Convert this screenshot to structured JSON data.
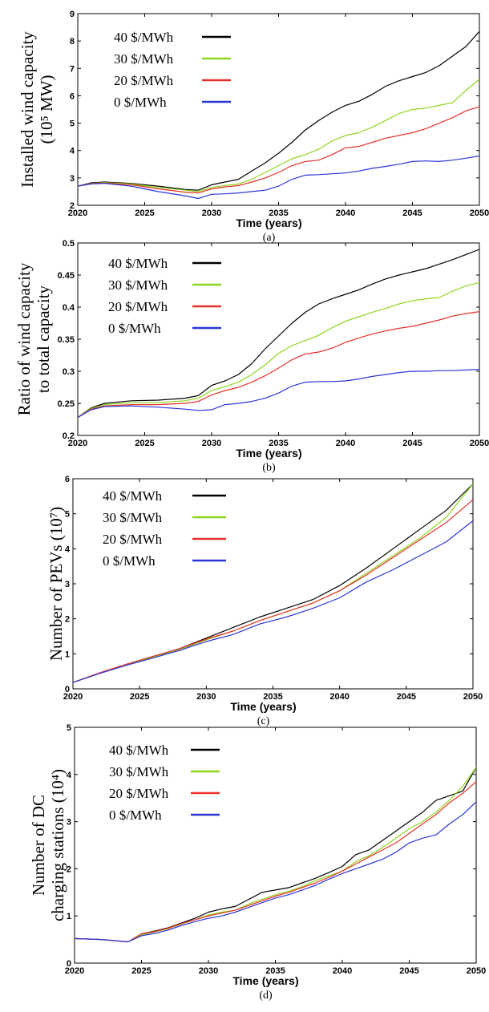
{
  "chart_data": [
    {
      "type": "line",
      "panel": "(a)",
      "caption": "(a)",
      "xlabel": "Time (years)",
      "ylabel_lines": [
        "Installed wind capacity",
        "(10⁵ MW)"
      ],
      "xlim": [
        2020,
        2050
      ],
      "ylim": [
        2,
        9
      ],
      "xticks": [
        2020,
        2025,
        2030,
        2035,
        2040,
        2045,
        2050
      ],
      "yticks": [
        2,
        3,
        4,
        5,
        6,
        7,
        8,
        9
      ],
      "ytick_labels": [
        "2",
        "3",
        "4",
        "5",
        "6",
        "7",
        "8",
        "9"
      ],
      "legend_position": "top-left",
      "series": [
        {
          "name": "40 $/MWh",
          "color": "#000000",
          "x": [
            2020,
            2021,
            2022,
            2024,
            2026,
            2028,
            2029,
            2030,
            2031,
            2032,
            2033,
            2034,
            2035,
            2036,
            2037,
            2038,
            2039,
            2040,
            2041,
            2042,
            2043,
            2044,
            2045,
            2046,
            2047,
            2048,
            2049,
            2050
          ],
          "y": [
            2.7,
            2.82,
            2.85,
            2.8,
            2.7,
            2.58,
            2.55,
            2.75,
            2.85,
            2.95,
            3.25,
            3.55,
            3.9,
            4.3,
            4.75,
            5.1,
            5.4,
            5.65,
            5.8,
            6.05,
            6.35,
            6.55,
            6.7,
            6.85,
            7.1,
            7.45,
            7.8,
            8.35
          ]
        },
        {
          "name": "30 $/MWh",
          "color": "#8ed61c",
          "x": [
            2020,
            2021,
            2022,
            2024,
            2026,
            2028,
            2029,
            2030,
            2031,
            2032,
            2033,
            2034,
            2035,
            2036,
            2037,
            2038,
            2039,
            2040,
            2041,
            2042,
            2043,
            2044,
            2045,
            2046,
            2047,
            2048,
            2049,
            2050
          ],
          "y": [
            2.7,
            2.8,
            2.83,
            2.78,
            2.65,
            2.55,
            2.5,
            2.65,
            2.72,
            2.78,
            2.95,
            3.2,
            3.45,
            3.7,
            3.85,
            4.05,
            4.35,
            4.55,
            4.65,
            4.85,
            5.1,
            5.35,
            5.5,
            5.55,
            5.65,
            5.75,
            6.2,
            6.6
          ]
        },
        {
          "name": "20 $/MWh",
          "color": "#e8312a",
          "x": [
            2020,
            2021,
            2022,
            2024,
            2026,
            2028,
            2029,
            2030,
            2031,
            2032,
            2033,
            2034,
            2035,
            2036,
            2037,
            2038,
            2039,
            2040,
            2041,
            2042,
            2043,
            2044,
            2045,
            2046,
            2047,
            2048,
            2049,
            2050
          ],
          "y": [
            2.7,
            2.79,
            2.81,
            2.75,
            2.6,
            2.48,
            2.45,
            2.6,
            2.67,
            2.72,
            2.85,
            3.0,
            3.2,
            3.45,
            3.6,
            3.65,
            3.85,
            4.1,
            4.15,
            4.3,
            4.45,
            4.55,
            4.65,
            4.8,
            5.0,
            5.2,
            5.45,
            5.6
          ]
        },
        {
          "name": "0 $/MWh",
          "color": "#2a36d8",
          "x": [
            2020,
            2021,
            2022,
            2024,
            2026,
            2028,
            2029,
            2030,
            2031,
            2032,
            2033,
            2034,
            2035,
            2036,
            2037,
            2038,
            2039,
            2040,
            2041,
            2042,
            2043,
            2044,
            2045,
            2046,
            2047,
            2048,
            2049,
            2050
          ],
          "y": [
            2.7,
            2.78,
            2.8,
            2.7,
            2.5,
            2.35,
            2.25,
            2.4,
            2.42,
            2.45,
            2.5,
            2.55,
            2.7,
            2.95,
            3.1,
            3.12,
            3.15,
            3.18,
            3.25,
            3.35,
            3.42,
            3.5,
            3.6,
            3.62,
            3.6,
            3.65,
            3.72,
            3.8
          ]
        }
      ]
    },
    {
      "type": "line",
      "panel": "(b)",
      "caption": "(b)",
      "xlabel": "Time (years)",
      "ylabel_lines": [
        "Ratio of wind capacity",
        "to total capacity"
      ],
      "xlim": [
        2020,
        2050
      ],
      "ylim": [
        0.2,
        0.5
      ],
      "xticks": [
        2020,
        2025,
        2030,
        2035,
        2040,
        2045,
        2050
      ],
      "yticks": [
        0.2,
        0.25,
        0.3,
        0.35,
        0.4,
        0.45,
        0.5
      ],
      "ytick_labels": [
        "0.2",
        "0.25",
        "0.3",
        "0.35",
        "0.4",
        "0.45",
        "0.5"
      ],
      "legend_position": "top-left",
      "series": [
        {
          "name": "40 $/MWh",
          "color": "#000000",
          "x": [
            2020,
            2021,
            2022,
            2024,
            2026,
            2028,
            2029,
            2030,
            2031,
            2032,
            2033,
            2034,
            2035,
            2036,
            2037,
            2038,
            2039,
            2040,
            2041,
            2042,
            2043,
            2044,
            2045,
            2046,
            2047,
            2048,
            2049,
            2050
          ],
          "y": [
            0.228,
            0.243,
            0.25,
            0.254,
            0.255,
            0.258,
            0.262,
            0.278,
            0.285,
            0.295,
            0.312,
            0.335,
            0.355,
            0.375,
            0.392,
            0.405,
            0.413,
            0.42,
            0.427,
            0.436,
            0.444,
            0.45,
            0.455,
            0.46,
            0.467,
            0.474,
            0.482,
            0.49
          ]
        },
        {
          "name": "30 $/MWh",
          "color": "#8ed61c",
          "x": [
            2020,
            2021,
            2022,
            2024,
            2026,
            2028,
            2029,
            2030,
            2031,
            2032,
            2033,
            2034,
            2035,
            2036,
            2037,
            2038,
            2039,
            2040,
            2041,
            2042,
            2043,
            2044,
            2045,
            2046,
            2047,
            2048,
            2049,
            2050
          ],
          "y": [
            0.228,
            0.242,
            0.248,
            0.251,
            0.251,
            0.254,
            0.258,
            0.27,
            0.276,
            0.283,
            0.295,
            0.31,
            0.328,
            0.34,
            0.348,
            0.356,
            0.368,
            0.378,
            0.385,
            0.392,
            0.398,
            0.405,
            0.41,
            0.413,
            0.415,
            0.425,
            0.433,
            0.438
          ]
        },
        {
          "name": "20 $/MWh",
          "color": "#e8312a",
          "x": [
            2020,
            2021,
            2022,
            2024,
            2026,
            2028,
            2029,
            2030,
            2031,
            2032,
            2033,
            2034,
            2035,
            2036,
            2037,
            2038,
            2039,
            2040,
            2041,
            2042,
            2043,
            2044,
            2045,
            2046,
            2047,
            2048,
            2049,
            2050
          ],
          "y": [
            0.228,
            0.241,
            0.246,
            0.248,
            0.248,
            0.25,
            0.253,
            0.263,
            0.27,
            0.275,
            0.283,
            0.293,
            0.305,
            0.318,
            0.327,
            0.33,
            0.336,
            0.345,
            0.352,
            0.358,
            0.363,
            0.367,
            0.37,
            0.375,
            0.38,
            0.386,
            0.39,
            0.393
          ]
        },
        {
          "name": "0 $/MWh",
          "color": "#2a36d8",
          "x": [
            2020,
            2021,
            2022,
            2024,
            2026,
            2028,
            2029,
            2030,
            2031,
            2032,
            2033,
            2034,
            2035,
            2036,
            2037,
            2038,
            2039,
            2040,
            2041,
            2042,
            2043,
            2044,
            2045,
            2046,
            2047,
            2048,
            2049,
            2050
          ],
          "y": [
            0.228,
            0.24,
            0.245,
            0.246,
            0.244,
            0.241,
            0.239,
            0.24,
            0.248,
            0.25,
            0.253,
            0.258,
            0.266,
            0.277,
            0.283,
            0.284,
            0.284,
            0.285,
            0.288,
            0.292,
            0.295,
            0.298,
            0.3,
            0.3,
            0.301,
            0.301,
            0.302,
            0.303
          ]
        }
      ]
    },
    {
      "type": "line",
      "panel": "(c)",
      "caption": "(c)",
      "xlabel": "Time (years)",
      "ylabel_lines": [
        "Number of PEVs (10⁷)"
      ],
      "xlim": [
        2020,
        2050
      ],
      "ylim": [
        0,
        6
      ],
      "xticks": [
        2020,
        2025,
        2030,
        2035,
        2040,
        2045,
        2050
      ],
      "yticks": [
        0,
        1,
        2,
        3,
        4,
        5,
        6
      ],
      "ytick_labels": [
        "0",
        "1",
        "2",
        "3",
        "4",
        "5",
        "6"
      ],
      "legend_position": "top-left",
      "series": [
        {
          "name": "40 $/MWh",
          "color": "#000000",
          "x": [
            2020,
            2022,
            2024,
            2026,
            2028,
            2030,
            2032,
            2034,
            2036,
            2038,
            2040,
            2042,
            2044,
            2046,
            2048,
            2050
          ],
          "y": [
            0.18,
            0.45,
            0.7,
            0.92,
            1.15,
            1.45,
            1.75,
            2.05,
            2.3,
            2.55,
            2.95,
            3.45,
            4.0,
            4.55,
            5.1,
            5.85
          ]
        },
        {
          "name": "30 $/MWh",
          "color": "#8ed61c",
          "x": [
            2020,
            2022,
            2024,
            2026,
            2028,
            2030,
            2032,
            2034,
            2036,
            2038,
            2040,
            2042,
            2044,
            2046,
            2048,
            2050
          ],
          "y": [
            0.18,
            0.45,
            0.68,
            0.9,
            1.12,
            1.4,
            1.65,
            1.95,
            2.2,
            2.45,
            2.8,
            3.3,
            3.8,
            4.3,
            4.9,
            5.85
          ]
        },
        {
          "name": "20 $/MWh",
          "color": "#e8312a",
          "x": [
            2020,
            2022,
            2024,
            2026,
            2028,
            2030,
            2032,
            2034,
            2036,
            2038,
            2040,
            2042,
            2044,
            2046,
            2048,
            2050
          ],
          "y": [
            0.18,
            0.46,
            0.7,
            0.93,
            1.15,
            1.42,
            1.65,
            1.95,
            2.2,
            2.45,
            2.8,
            3.25,
            3.75,
            4.25,
            4.75,
            5.4
          ]
        },
        {
          "name": "0 $/MWh",
          "color": "#2a36d8",
          "x": [
            2020,
            2022,
            2024,
            2026,
            2028,
            2030,
            2032,
            2034,
            2036,
            2038,
            2040,
            2042,
            2044,
            2046,
            2048,
            2050
          ],
          "y": [
            0.18,
            0.44,
            0.67,
            0.88,
            1.1,
            1.35,
            1.55,
            1.85,
            2.05,
            2.3,
            2.6,
            3.05,
            3.4,
            3.8,
            4.2,
            4.8
          ]
        }
      ]
    },
    {
      "type": "line",
      "panel": "(d)",
      "caption": "(d)",
      "xlabel": "Time (years)",
      "ylabel_lines": [
        "Number of DC",
        "charging stations (10⁴)"
      ],
      "xlim": [
        2020,
        2050
      ],
      "ylim": [
        0,
        5
      ],
      "xticks": [
        2020,
        2025,
        2030,
        2035,
        2040,
        2045,
        2050
      ],
      "yticks": [
        0,
        1,
        2,
        3,
        4,
        5
      ],
      "ytick_labels": [
        "0",
        "1",
        "2",
        "3",
        "4",
        "5"
      ],
      "legend_position": "top-left",
      "series": [
        {
          "name": "40 $/MWh",
          "color": "#000000",
          "x": [
            2020,
            2022,
            2024,
            2025,
            2026,
            2027,
            2028,
            2029,
            2030,
            2031,
            2032,
            2033,
            2034,
            2035,
            2036,
            2037,
            2038,
            2039,
            2040,
            2041,
            2042,
            2043,
            2044,
            2045,
            2046,
            2047,
            2048,
            2049,
            2050
          ],
          "y": [
            0.52,
            0.5,
            0.45,
            0.62,
            0.68,
            0.75,
            0.85,
            0.95,
            1.08,
            1.15,
            1.2,
            1.35,
            1.5,
            1.55,
            1.6,
            1.7,
            1.8,
            1.92,
            2.05,
            2.3,
            2.4,
            2.6,
            2.8,
            3.0,
            3.2,
            3.45,
            3.55,
            3.65,
            4.15
          ]
        },
        {
          "name": "30 $/MWh",
          "color": "#8ed61c",
          "x": [
            2020,
            2022,
            2024,
            2025,
            2026,
            2027,
            2028,
            2029,
            2030,
            2031,
            2032,
            2033,
            2034,
            2035,
            2036,
            2037,
            2038,
            2039,
            2040,
            2041,
            2042,
            2043,
            2044,
            2045,
            2046,
            2047,
            2048,
            2049,
            2050
          ],
          "y": [
            0.52,
            0.5,
            0.45,
            0.6,
            0.66,
            0.73,
            0.83,
            0.92,
            1.02,
            1.08,
            1.12,
            1.25,
            1.35,
            1.45,
            1.52,
            1.62,
            1.75,
            1.85,
            1.95,
            2.15,
            2.28,
            2.45,
            2.65,
            2.85,
            3.0,
            3.2,
            3.45,
            3.75,
            4.15
          ]
        },
        {
          "name": "20 $/MWh",
          "color": "#e8312a",
          "x": [
            2020,
            2022,
            2024,
            2025,
            2026,
            2027,
            2028,
            2029,
            2030,
            2031,
            2032,
            2033,
            2034,
            2035,
            2036,
            2037,
            2038,
            2039,
            2040,
            2041,
            2042,
            2043,
            2044,
            2045,
            2046,
            2047,
            2048,
            2049,
            2050
          ],
          "y": [
            0.52,
            0.5,
            0.45,
            0.62,
            0.67,
            0.74,
            0.84,
            0.92,
            1.0,
            1.06,
            1.12,
            1.22,
            1.32,
            1.42,
            1.5,
            1.6,
            1.7,
            1.82,
            1.95,
            2.1,
            2.25,
            2.4,
            2.55,
            2.75,
            2.95,
            3.15,
            3.4,
            3.6,
            3.85
          ]
        },
        {
          "name": "0 $/MWh",
          "color": "#2a36d8",
          "x": [
            2020,
            2022,
            2024,
            2025,
            2026,
            2027,
            2028,
            2029,
            2030,
            2031,
            2032,
            2033,
            2034,
            2035,
            2036,
            2037,
            2038,
            2039,
            2040,
            2041,
            2042,
            2043,
            2044,
            2045,
            2046,
            2047,
            2048,
            2049,
            2050
          ],
          "y": [
            0.52,
            0.5,
            0.45,
            0.58,
            0.63,
            0.7,
            0.8,
            0.88,
            0.95,
            1.0,
            1.08,
            1.18,
            1.28,
            1.38,
            1.45,
            1.55,
            1.65,
            1.78,
            1.9,
            2.0,
            2.1,
            2.2,
            2.35,
            2.55,
            2.65,
            2.72,
            2.95,
            3.15,
            3.42
          ]
        }
      ]
    }
  ]
}
